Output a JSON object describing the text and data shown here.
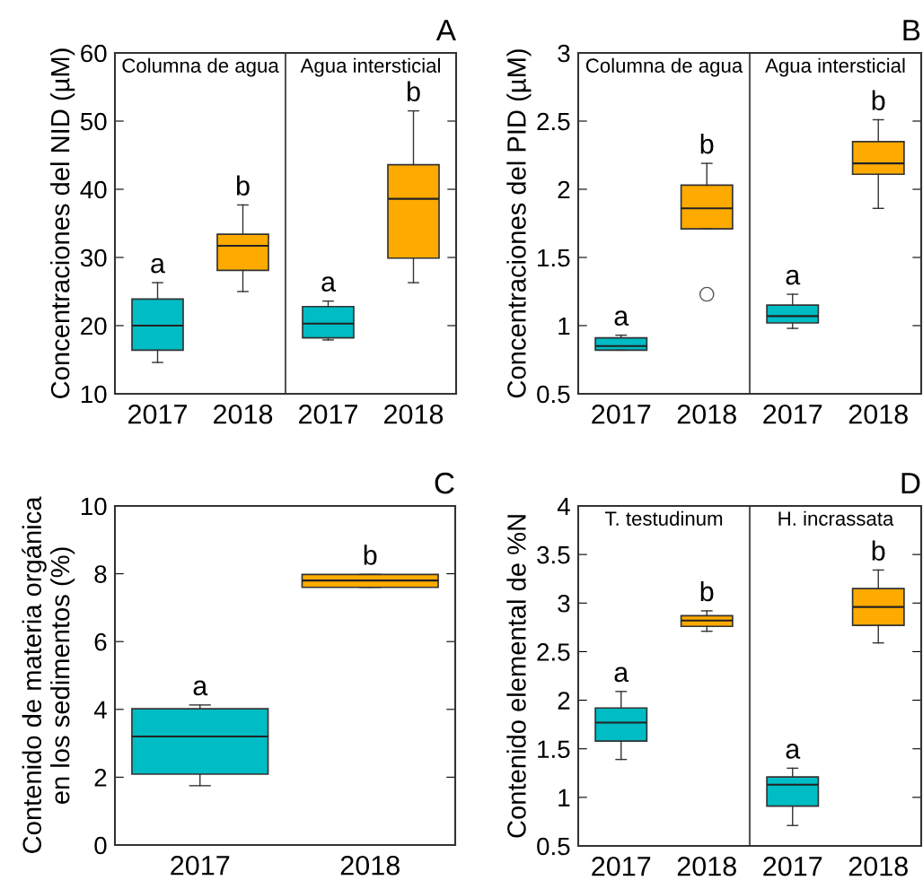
{
  "chart_data": [
    {
      "type": "box",
      "title": "A",
      "ylabel": "Concentraciones del NID (µM)",
      "categories": [
        "2017",
        "2018",
        "2017",
        "2018"
      ],
      "colors": [
        "#00bcc4",
        "#ffaa00",
        "#00bcc4",
        "#ffaa00"
      ],
      "ylim": [
        10,
        60
      ],
      "yticks": [
        10,
        20,
        30,
        40,
        50,
        60
      ],
      "grid": false,
      "boxes": [
        {
          "low": 14.6,
          "q1": 16.4,
          "median": 20,
          "q3": 23.9,
          "high": 26.3
        },
        {
          "low": 25.0,
          "q1": 28.1,
          "median": 31.7,
          "q3": 33.4,
          "high": 37.7
        },
        {
          "low": 17.9,
          "q1": 18.2,
          "median": 20.3,
          "q3": 22.8,
          "high": 23.6
        },
        {
          "low": 26.3,
          "q1": 29.9,
          "median": 38.6,
          "q3": 43.6,
          "high": 51.5
        }
      ],
      "annotations": [
        "a",
        "b",
        "a",
        "b",
        "Columna de agua",
        "Agua intersticial"
      ]
    },
    {
      "type": "box",
      "title": "B",
      "ylabel": "Concentraciones del PID (µM)",
      "categories": [
        "2017",
        "2018",
        "2017",
        "2018"
      ],
      "colors": [
        "#00bcc4",
        "#ffaa00",
        "#00bcc4",
        "#ffaa00"
      ],
      "ylim": [
        0.5,
        3
      ],
      "yticks": [
        0.5,
        1,
        1.5,
        2,
        2.5,
        3
      ],
      "grid": false,
      "boxes": [
        {
          "low": 0.82,
          "q1": 0.82,
          "median": 0.85,
          "q3": 0.91,
          "high": 0.93
        },
        {
          "low": 1.71,
          "q1": 1.71,
          "median": 1.86,
          "q3": 2.03,
          "high": 2.19,
          "outliers": [
            1.23
          ]
        },
        {
          "low": 0.98,
          "q1": 1.02,
          "median": 1.07,
          "q3": 1.15,
          "high": 1.23
        },
        {
          "low": 1.86,
          "q1": 2.11,
          "median": 2.19,
          "q3": 2.35,
          "high": 2.51
        }
      ],
      "annotations": [
        "a",
        "b",
        "a",
        "b",
        "Columna de agua",
        "Agua intersticial"
      ]
    },
    {
      "type": "box",
      "title": "C",
      "ylabel": "Contenido de materia orgánica\nen los sedimentos (%)",
      "categories": [
        "2017",
        "2018"
      ],
      "colors": [
        "#00bcc4",
        "#ffaa00"
      ],
      "ylim": [
        0,
        10
      ],
      "yticks": [
        0,
        2,
        4,
        6,
        8,
        10
      ],
      "grid": false,
      "boxes": [
        {
          "low": 1.75,
          "q1": 2.09,
          "median": 3.2,
          "q3": 4.02,
          "high": 4.13
        },
        {
          "low": 7.6,
          "q1": 7.6,
          "median": 7.8,
          "q3": 7.98,
          "high": 7.98
        }
      ],
      "annotations": [
        "a",
        "b"
      ]
    },
    {
      "type": "box",
      "title": "D",
      "ylabel": "Contenido elemental de %N",
      "categories": [
        "2017",
        "2018",
        "2017",
        "2018"
      ],
      "colors": [
        "#00bcc4",
        "#ffaa00",
        "#00bcc4",
        "#ffaa00"
      ],
      "ylim": [
        0.5,
        4
      ],
      "yticks": [
        0.5,
        1,
        1.5,
        2,
        2.5,
        3,
        3.5,
        4
      ],
      "grid": false,
      "boxes": [
        {
          "low": 1.39,
          "q1": 1.58,
          "median": 1.77,
          "q3": 1.92,
          "high": 2.09
        },
        {
          "low": 2.71,
          "q1": 2.76,
          "median": 2.82,
          "q3": 2.87,
          "high": 2.92
        },
        {
          "low": 0.71,
          "q1": 0.91,
          "median": 1.13,
          "q3": 1.21,
          "high": 1.3
        },
        {
          "low": 2.59,
          "q1": 2.77,
          "median": 2.96,
          "q3": 3.15,
          "high": 3.34
        }
      ],
      "annotations": [
        "a",
        "b",
        "a",
        "b",
        "T. testudinum",
        "H. incrassata"
      ]
    }
  ]
}
